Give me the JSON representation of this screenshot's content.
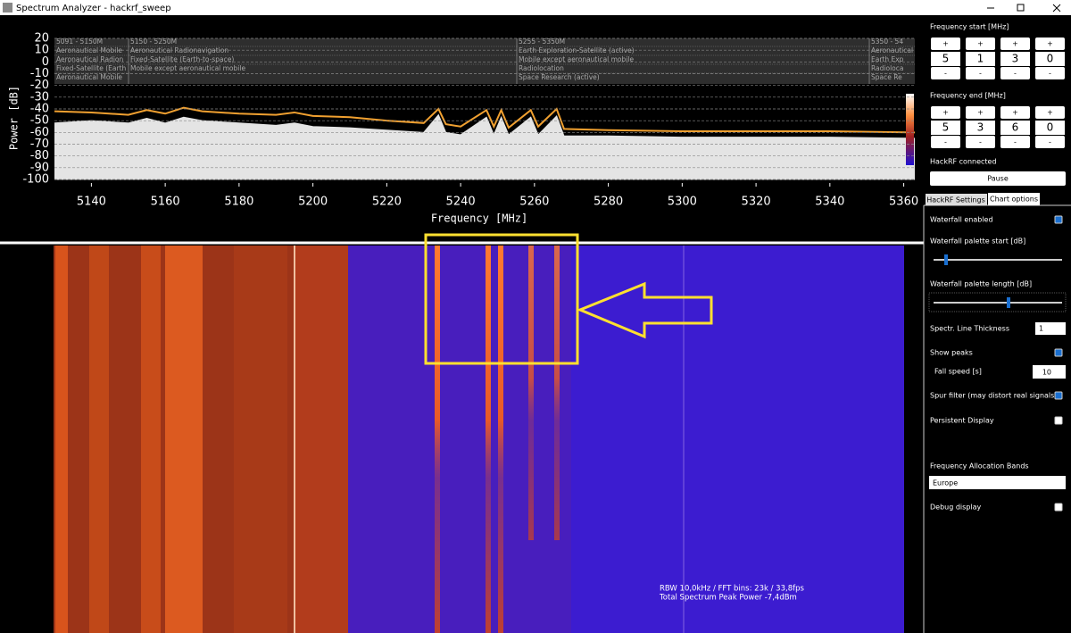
{
  "window": {
    "title": "Spectrum Analyzer - hackrf_sweep"
  },
  "spectrum": {
    "xlabel": "Frequency [MHz]",
    "ylabel": "Power [dB]",
    "xlim": [
      5130,
      5363
    ],
    "xticks": [
      5140,
      5160,
      5180,
      5200,
      5220,
      5240,
      5260,
      5280,
      5300,
      5320,
      5340,
      5360
    ],
    "ylim": [
      -100,
      20
    ],
    "yticks": [
      20,
      10,
      0,
      -10,
      -20,
      -30,
      -40,
      -50,
      -60,
      -70,
      -80,
      -90,
      -100
    ],
    "bands": [
      {
        "range": "5091 - 5150M",
        "services": [
          "Aeronautical Mobile",
          "Aeronautical Radion",
          "Fixed-Satellite (Earth",
          "Aeronautical Mobile"
        ]
      },
      {
        "range": "5150 - 5250M",
        "services": [
          "Aeronautical Radionavigation",
          "Fixed-Satellite (Earth-to-space)",
          "Mobile except aeronautical mobile"
        ]
      },
      {
        "range": "5255 - 5350M",
        "services": [
          "Earth Exploration-Satellite (active)",
          "Mobile except aeronautical mobile",
          "Radiolocation",
          "Space Research (active)"
        ]
      },
      {
        "range": "5350 - 54",
        "services": [
          "Aeronautical",
          "Earth Exp",
          "Radioloca",
          "Space Re"
        ]
      }
    ],
    "x": [
      5130,
      5140,
      5150,
      5155,
      5160,
      5165,
      5170,
      5180,
      5190,
      5195,
      5200,
      5210,
      5220,
      5230,
      5234,
      5236,
      5240,
      5247,
      5249,
      5251,
      5253,
      5259,
      5261,
      5266,
      5268,
      5280,
      5300,
      5320,
      5340,
      5363
    ],
    "current": {
      "color": "#e4e4e4",
      "values": [
        -52,
        -50,
        -52,
        -48,
        -52,
        -47,
        -50,
        -52,
        -54,
        -52,
        -55,
        -56,
        -58,
        -60,
        -45,
        -60,
        -62,
        -47,
        -62,
        -47,
        -62,
        -47,
        -62,
        -46,
        -63,
        -63,
        -64,
        -64,
        -64,
        -65
      ]
    },
    "peak": {
      "color": "#f0a030",
      "values": [
        -42,
        -43,
        -45,
        -41,
        -44,
        -39,
        -42,
        -44,
        -45,
        -43,
        -46,
        -47,
        -50,
        -52,
        -40,
        -53,
        -55,
        -41,
        -55,
        -41,
        -56,
        -41,
        -55,
        -40,
        -57,
        -58,
        -59,
        -59,
        -59,
        -60
      ]
    }
  },
  "waterfall": {
    "info": [
      "RBW 10,0kHz / FFT bins: 23k / 33,8fps",
      "Total Spectrum Peak Power -7,4dBm"
    ]
  },
  "panel": {
    "plus": "+",
    "minus": "-",
    "freq_start": {
      "label": "Frequency start [MHz]",
      "digits": [
        "5",
        "1",
        "3",
        "0"
      ]
    },
    "freq_end": {
      "label": "Frequency end [MHz]",
      "digits": [
        "5",
        "3",
        "6",
        "0"
      ]
    },
    "status": "HackRF connected",
    "pause": "Pause",
    "tabs": [
      "HackRF Settings",
      "Chart options"
    ],
    "waterfall_enabled": {
      "label": "Waterfall enabled",
      "checked": true
    },
    "palette_start": {
      "label": "Waterfall palette start [dB]"
    },
    "palette_length": {
      "label": "Waterfall palette length [dB]"
    },
    "line_thickness": {
      "label": "Spectr. Line Thickness",
      "value": "1"
    },
    "show_peaks": {
      "label": "Show peaks",
      "checked": true
    },
    "fall_speed": {
      "label": "Fall speed [s]",
      "value": "10"
    },
    "spur_filter": {
      "label": "Spur filter (may distort real signals)",
      "checked": true
    },
    "persistent": {
      "label": "Persistent Display",
      "checked": false
    },
    "allocation": {
      "label": "Frequency Allocation Bands",
      "value": "Europe"
    },
    "debug": {
      "label": "Debug display",
      "checked": false
    }
  }
}
